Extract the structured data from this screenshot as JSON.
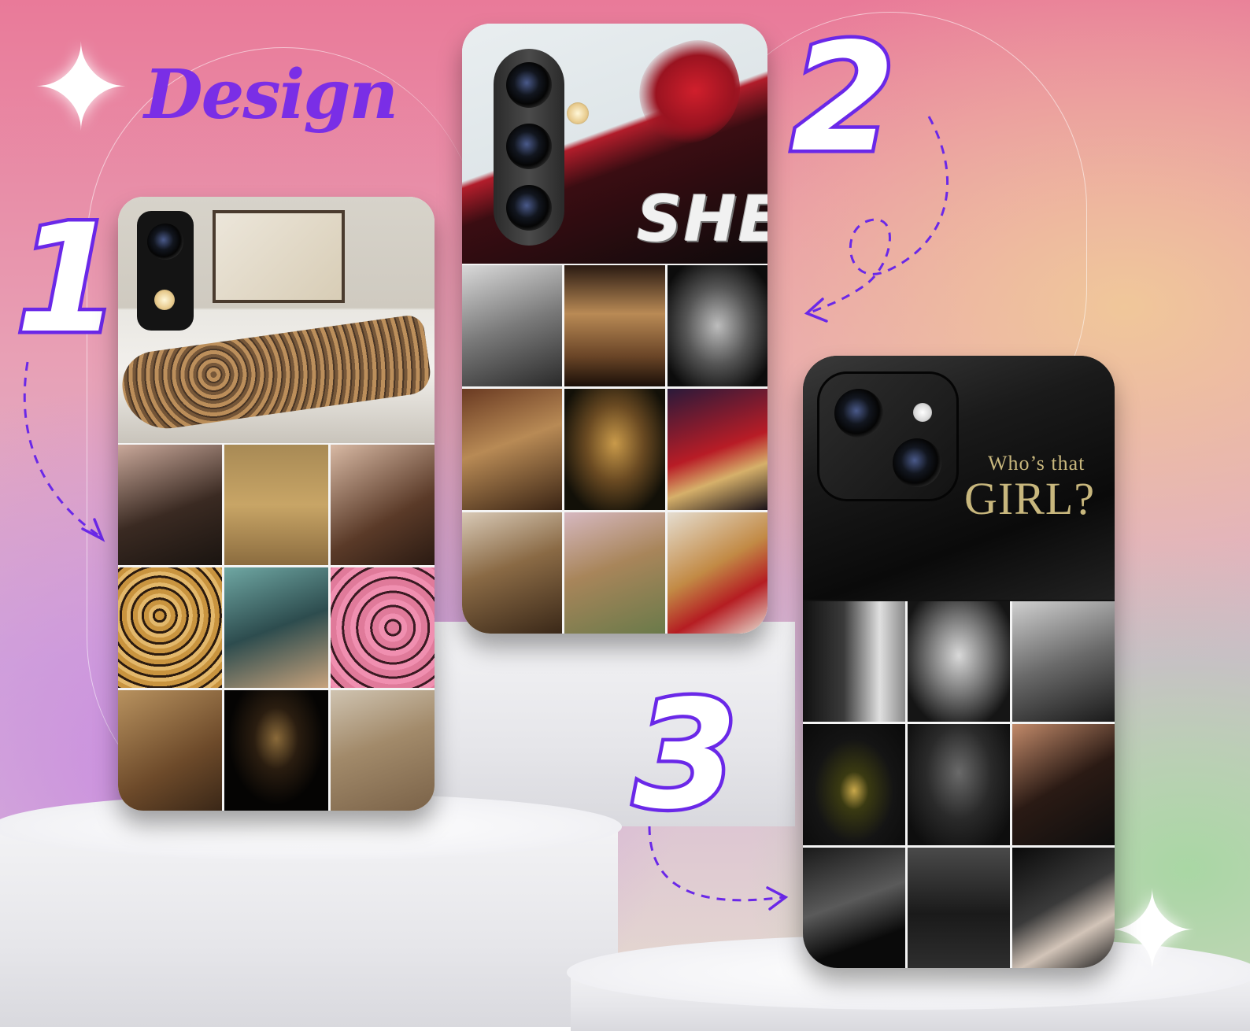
{
  "heading": {
    "design_label": "Design"
  },
  "numbers": {
    "one": "1",
    "two": "2",
    "three": "3"
  },
  "case_two": {
    "overlay_text": "SHE"
  },
  "case_three": {
    "line1": "Who’s that",
    "line2": "GIRL?"
  },
  "colors": {
    "accent_purple": "#6a28e8",
    "title_purple": "#7a2ee6",
    "gold_text": "#c8b77d"
  },
  "icons": [
    "sparkle-icon",
    "dashed-arrow-icon",
    "camera-lens-icon"
  ]
}
